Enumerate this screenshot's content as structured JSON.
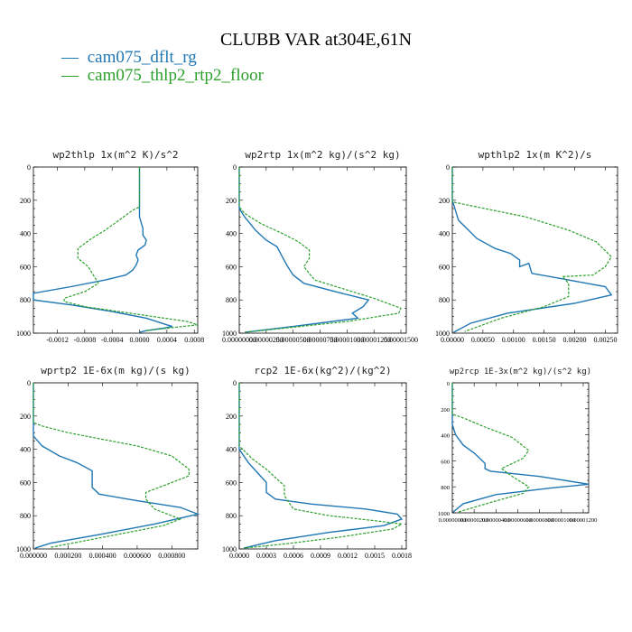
{
  "title": "CLUBB VAR at304E,61N",
  "colors": {
    "dflt": "#1f77b4",
    "floor": "#2ca02c"
  },
  "legend": [
    {
      "marker": "—",
      "label": "cam075_dflt_rg",
      "color": "#1f77b4"
    },
    {
      "marker": "—",
      "label": "cam075_thlp2_rtp2_floor",
      "color": "#2ca02c"
    }
  ],
  "chart_data": [
    {
      "type": "line",
      "title": "wp2thlp   1x(m^2 K)/s^2",
      "ylim": [
        1000,
        0
      ],
      "xlim": [
        -0.00155,
        0.00085
      ],
      "yticks": [
        "0",
        "200",
        "400",
        "600",
        "800",
        "1000"
      ],
      "xticks": [
        {
          "value": -0.0012,
          "label": "-0.0012"
        },
        {
          "value": -0.0008,
          "label": "-0.0008"
        },
        {
          "value": -0.0004,
          "label": "-0.0004"
        },
        {
          "value": 0.0,
          "label": "0.0000"
        },
        {
          "value": 0.0004,
          "label": "0.0004"
        },
        {
          "value": 0.0008,
          "label": "0.0008"
        }
      ],
      "series": [
        {
          "name": "cam075_dflt_rg",
          "x": [
            0,
            0,
            5e-05,
            5e-05,
            0.0001,
            8e-05,
            -2e-05,
            -5e-05,
            -2e-05,
            -5e-05,
            -0.0001,
            -0.0002,
            -0.0005,
            -0.001,
            -0.00155,
            -0.00155,
            -0.001,
            -0.0004,
            0.0001,
            0.0004,
            0.00048,
            0.00035,
            0.0001,
            0.0
          ],
          "y": [
            0,
            300,
            370,
            410,
            440,
            470,
            500,
            530,
            560,
            590,
            620,
            650,
            680,
            720,
            760,
            800,
            830,
            870,
            910,
            950,
            960,
            970,
            985,
            995
          ]
        },
        {
          "name": "cam075_thlp2_rtp2_floor",
          "x": [
            0,
            0,
            -0.0001,
            -0.0003,
            -0.0005,
            -0.0007,
            -0.0009,
            -0.0009,
            -0.00075,
            -0.0006,
            -0.0008,
            -0.0011,
            -0.0011,
            -0.0008,
            -0.0003,
            0.0002,
            0.0007,
            0.00085,
            0.0004,
            0.0001
          ],
          "y": [
            0,
            240,
            260,
            320,
            380,
            430,
            490,
            550,
            600,
            700,
            750,
            790,
            810,
            840,
            870,
            900,
            930,
            950,
            970,
            985
          ]
        }
      ]
    },
    {
      "type": "line",
      "title": "wp2rtp   1x(m^2 kg)/(s^2 kg)",
      "ylim": [
        1000,
        0
      ],
      "xlim": [
        0,
        1.55e-05
      ],
      "yticks": [
        "0",
        "200",
        "400",
        "600",
        "800",
        "1000"
      ],
      "xticks": [
        {
          "value": 0,
          "label": "0.00000000"
        },
        {
          "value": 2.5e-06,
          "label": "0.00000250"
        },
        {
          "value": 5e-06,
          "label": "0.00000500"
        },
        {
          "value": 7.5e-06,
          "label": "0.00000750"
        },
        {
          "value": 1e-05,
          "label": "0.00001000"
        },
        {
          "value": 1.25e-05,
          "label": "0.00001250"
        },
        {
          "value": 1.5e-05,
          "label": "0.00001500"
        }
      ],
      "series": [
        {
          "name": "cam075_dflt_rg",
          "x": [
            0,
            0,
            5e-07,
            1.5e-06,
            2.5e-06,
            3.5e-06,
            4e-06,
            4.5e-06,
            5e-06,
            6e-06,
            9.5e-06,
            1.2e-05,
            1.15e-05,
            1.05e-05,
            1.1e-05,
            5e-06,
            5e-07
          ],
          "y": [
            0,
            250,
            300,
            380,
            440,
            480,
            540,
            600,
            650,
            700,
            760,
            800,
            840,
            880,
            910,
            960,
            995
          ]
        },
        {
          "name": "cam075_thlp2_rtp2_floor",
          "x": [
            0,
            0,
            5e-07,
            2e-06,
            4e-06,
            5.5e-06,
            6.5e-06,
            6.5e-06,
            6e-06,
            7e-06,
            1e-05,
            1.25e-05,
            1.5e-05,
            1.48e-05,
            1e-05,
            5e-07
          ],
          "y": [
            0,
            240,
            280,
            340,
            400,
            450,
            500,
            550,
            600,
            680,
            740,
            790,
            850,
            880,
            930,
            995
          ]
        }
      ]
    },
    {
      "type": "line",
      "title": "wpthlp2   1x(m K^2)/s",
      "ylim": [
        1000,
        0
      ],
      "xlim": [
        0,
        0.0027
      ],
      "yticks": [
        "0",
        "200",
        "400",
        "600",
        "800",
        "1000"
      ],
      "xticks": [
        {
          "value": 0,
          "label": "0.00000"
        },
        {
          "value": 0.0005,
          "label": "0.00050"
        },
        {
          "value": 0.001,
          "label": "0.00100"
        },
        {
          "value": 0.0015,
          "label": "0.00150"
        },
        {
          "value": 0.002,
          "label": "0.00200"
        },
        {
          "value": 0.0025,
          "label": "0.00250"
        }
      ],
      "series": [
        {
          "name": "cam075_dflt_rg",
          "x": [
            0,
            0,
            0.0001,
            0.0004,
            0.0007,
            0.00095,
            0.0011,
            0.0011,
            0.00125,
            0.0013,
            0.0019,
            0.0025,
            0.0026,
            0.002,
            0.0009,
            0.0003,
            2e-05
          ],
          "y": [
            0,
            200,
            320,
            430,
            490,
            520,
            560,
            600,
            580,
            640,
            680,
            720,
            770,
            820,
            880,
            940,
            995
          ]
        },
        {
          "name": "cam075_thlp2_rtp2_floor",
          "x": [
            0,
            0,
            0.0004,
            0.0012,
            0.0019,
            0.00235,
            0.0026,
            0.0025,
            0.0023,
            0.0018,
            0.0019,
            0.0019,
            0.0015,
            0.0008,
            0.0002
          ],
          "y": [
            0,
            210,
            240,
            300,
            380,
            450,
            540,
            600,
            650,
            660,
            700,
            780,
            840,
            910,
            990
          ]
        }
      ]
    },
    {
      "type": "line",
      "title": "wprtp2   1E-6x(m kg)/(s kg)",
      "ylim": [
        1000,
        0
      ],
      "xlim": [
        0,
        0.00095
      ],
      "yticks": [
        "0",
        "200",
        "400",
        "600",
        "800",
        "1000"
      ],
      "xticks": [
        {
          "value": 0,
          "label": "0.000000"
        },
        {
          "value": 0.0002,
          "label": "0.000200"
        },
        {
          "value": 0.0004,
          "label": "0.000400"
        },
        {
          "value": 0.0006,
          "label": "0.000600"
        },
        {
          "value": 0.0008,
          "label": "0.000800"
        }
      ],
      "series": [
        {
          "name": "cam075_dflt_rg",
          "x": [
            0,
            0,
            5e-05,
            0.00015,
            0.00025,
            0.00034,
            0.00034,
            0.00038,
            0.0006,
            0.00085,
            0.00095,
            0.0007,
            0.0004,
            0.0001,
            1e-05
          ],
          "y": [
            0,
            320,
            380,
            440,
            480,
            530,
            630,
            670,
            710,
            750,
            790,
            850,
            910,
            965,
            995
          ]
        },
        {
          "name": "cam075_thlp2_rtp2_floor",
          "x": [
            0,
            0,
            5e-05,
            0.0002,
            0.0004,
            0.0006,
            0.0008,
            0.0009,
            0.0009,
            0.00075,
            0.00065,
            0.00065,
            0.0007,
            0.00085,
            0.00075,
            0.00045,
            0.0001
          ],
          "y": [
            0,
            240,
            260,
            300,
            340,
            380,
            440,
            520,
            560,
            620,
            660,
            700,
            760,
            820,
            860,
            920,
            990
          ]
        }
      ]
    },
    {
      "type": "line",
      "title": "rcp2   1E-6x(kg^2)/(kg^2)",
      "ylim": [
        1000,
        0
      ],
      "xlim": [
        0,
        0.00185
      ],
      "yticks": [
        "0",
        "200",
        "400",
        "600",
        "800",
        "1000"
      ],
      "xticks": [
        {
          "value": 0,
          "label": "0.0000"
        },
        {
          "value": 0.0003,
          "label": "0.0003"
        },
        {
          "value": 0.0006,
          "label": "0.0006"
        },
        {
          "value": 0.0009,
          "label": "0.0009"
        },
        {
          "value": 0.0012,
          "label": "0.0012"
        },
        {
          "value": 0.0015,
          "label": "0.0015"
        },
        {
          "value": 0.0018,
          "label": "0.0018"
        }
      ],
      "series": [
        {
          "name": "cam075_dflt_rg",
          "x": [
            0,
            0,
            0.0001,
            0.0002,
            0.0003,
            0.0003,
            0.0004,
            0.0008,
            0.0014,
            0.00175,
            0.0018,
            0.0016,
            0.001,
            0.0004,
            5e-05
          ],
          "y": [
            0,
            400,
            480,
            540,
            600,
            660,
            700,
            730,
            760,
            790,
            820,
            860,
            900,
            950,
            995
          ]
        },
        {
          "name": "cam075_thlp2_rtp2_floor",
          "x": [
            0,
            0,
            0.00015,
            0.0003,
            0.0004,
            0.0005,
            0.0005,
            0.0006,
            0.001,
            0.0015,
            0.0018,
            0.0017,
            0.0011,
            0.0005,
            5e-05
          ],
          "y": [
            0,
            380,
            460,
            520,
            570,
            620,
            680,
            760,
            800,
            830,
            850,
            880,
            930,
            970,
            995
          ]
        }
      ]
    },
    {
      "type": "line",
      "title": "wp2rcp   1E-3x(m^2 kg)/(s^2 kg)",
      "ylim": [
        1000,
        0
      ],
      "xlim": [
        0,
        1.25e-05
      ],
      "yticks": [
        "0",
        "200",
        "400",
        "600",
        "800",
        "1000"
      ],
      "xticks": [
        {
          "value": 0,
          "label": "0.00000000"
        },
        {
          "value": 2e-06,
          "label": "0.00000200"
        },
        {
          "value": 4e-06,
          "label": "0.00000400"
        },
        {
          "value": 6e-06,
          "label": "0.00000600"
        },
        {
          "value": 8e-06,
          "label": "0.00000800"
        },
        {
          "value": 1e-05,
          "label": "0.00001000"
        },
        {
          "value": 1.2e-05,
          "label": "0.00001200"
        }
      ],
      "series": [
        {
          "name": "cam075_dflt_rg",
          "x": [
            0,
            0,
            3e-07,
            1e-06,
            2e-06,
            2.5e-06,
            3e-06,
            3e-06,
            3.5e-06,
            8e-06,
            1.25e-05,
            9e-06,
            4e-06,
            1e-06,
            5e-08
          ],
          "y": [
            0,
            320,
            400,
            480,
            540,
            580,
            620,
            660,
            680,
            720,
            780,
            810,
            860,
            930,
            995
          ]
        },
        {
          "name": "cam075_thlp2_rtp2_floor",
          "x": [
            0,
            0,
            1e-06,
            3e-06,
            5.5e-06,
            7e-06,
            6.5e-06,
            5.5e-06,
            4.5e-06,
            5.5e-06,
            7e-06,
            6.5e-06,
            3.5e-06,
            5e-07
          ],
          "y": [
            0,
            240,
            270,
            340,
            420,
            520,
            580,
            620,
            660,
            720,
            800,
            850,
            920,
            995
          ]
        }
      ]
    }
  ]
}
